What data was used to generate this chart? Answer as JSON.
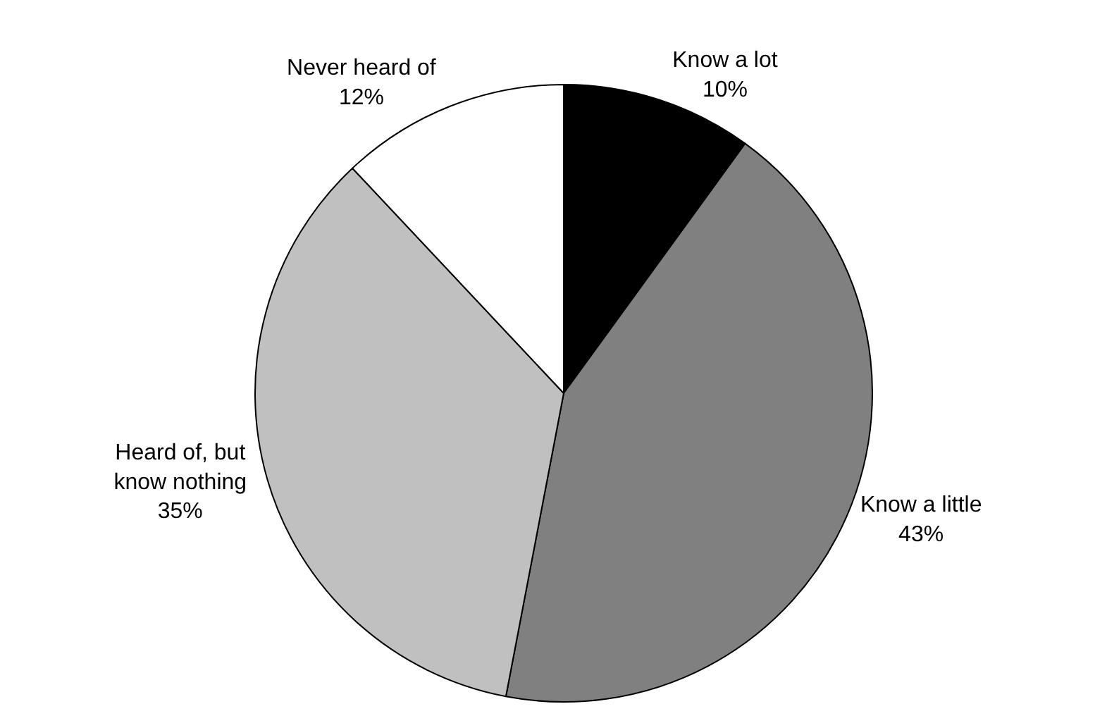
{
  "chart_data": {
    "type": "pie",
    "categories": [
      "Know a lot",
      "Know a little",
      "Heard of, but know nothing",
      "Never heard of"
    ],
    "values": [
      10,
      43,
      35,
      12
    ],
    "value_labels": [
      "10%",
      "43%",
      "35%",
      "12%"
    ],
    "colors": [
      "#000000",
      "#808080",
      "#c0c0c0",
      "#ffffff"
    ],
    "legend": false
  }
}
